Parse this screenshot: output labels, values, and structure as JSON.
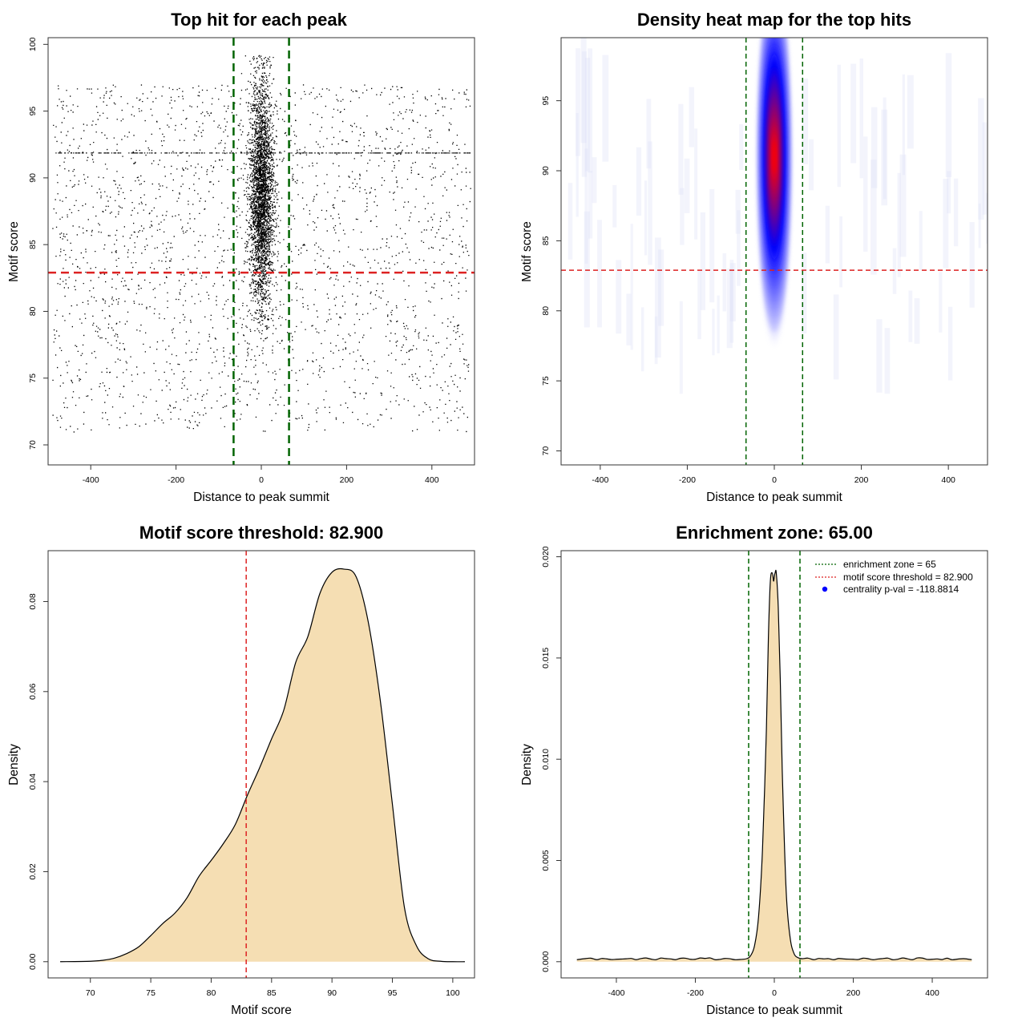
{
  "figure": {
    "background": "#ffffff"
  },
  "chart_data": [
    {
      "id": "scatter",
      "type": "scatter",
      "title": "Top hit for each peak",
      "xlabel": "Distance to peak summit",
      "ylabel": "Motif score",
      "xlim": [
        -500,
        500
      ],
      "ylim": [
        68.5,
        100.5
      ],
      "xticks": [
        -400,
        -200,
        0,
        200,
        400
      ],
      "xtick_labels": [
        "-400",
        "-200",
        "0",
        "200",
        "400"
      ],
      "yticks": [
        70,
        75,
        80,
        85,
        90,
        95,
        100
      ],
      "ytick_labels": [
        "70",
        "75",
        "80",
        "85",
        "90",
        "95",
        "100"
      ],
      "vlines": [
        -65,
        65
      ],
      "hline": 82.9,
      "colors": {
        "points": "#000000",
        "zone": "#006400",
        "threshold": "#dd2222"
      },
      "distribution": {
        "central_points": 7000,
        "central_x_sd": 14,
        "central_score_mean": 88.8,
        "central_score_sd": 4.3,
        "background_points": 2600,
        "background_x_range": [
          -490,
          490
        ],
        "background_score_range": [
          71,
          97
        ],
        "band_score": 91.9
      }
    },
    {
      "id": "heatmap",
      "type": "heatmap",
      "title": "Density heat map for the top hits",
      "xlabel": "Distance to peak summit",
      "ylabel": "Motif score",
      "xlim": [
        -490,
        490
      ],
      "ylim": [
        69,
        99.5
      ],
      "xticks": [
        -400,
        -200,
        0,
        200,
        400
      ],
      "xtick_labels": [
        "-400",
        "-200",
        "0",
        "200",
        "400"
      ],
      "yticks": [
        70,
        75,
        80,
        85,
        90,
        95
      ],
      "ytick_labels": [
        "70",
        "75",
        "80",
        "85",
        "90",
        "95"
      ],
      "vlines": [
        -65,
        65
      ],
      "hline": 82.9,
      "colors": {
        "low": "#ffffff",
        "mid": "#0000ff",
        "high": "#ff0000",
        "zone": "#006400",
        "threshold": "#dd2222"
      },
      "hotspot": {
        "x": 0,
        "score": 91.0,
        "x_sd": 14,
        "score_sd": 4.6
      }
    },
    {
      "id": "score_density",
      "type": "area",
      "title": "Motif score threshold: 82.900",
      "xlabel": "Motif score",
      "ylabel": "Density",
      "xlim": [
        66.5,
        101.8
      ],
      "ylim": [
        -0.0036,
        0.0913
      ],
      "xticks": [
        70,
        75,
        80,
        85,
        90,
        95,
        100
      ],
      "xtick_labels": [
        "70",
        "75",
        "80",
        "85",
        "90",
        "95",
        "100"
      ],
      "yticks": [
        0.0,
        0.02,
        0.04,
        0.06,
        0.08
      ],
      "ytick_labels": [
        "0.00",
        "0.02",
        "0.04",
        "0.06",
        "0.08"
      ],
      "vline": 82.9,
      "colors": {
        "fill": "#f5deb3",
        "line": "#000000",
        "threshold": "#dd2222"
      },
      "x": [
        67.5,
        70,
        71,
        72,
        73,
        74,
        75,
        76,
        77,
        78,
        79,
        80,
        81,
        82,
        83,
        84,
        85,
        86,
        87,
        88,
        89,
        90,
        91,
        92,
        93,
        94,
        95,
        96,
        97,
        98,
        99,
        100,
        101
      ],
      "y": [
        0.0,
        0.0001,
        0.0003,
        0.0008,
        0.0018,
        0.0033,
        0.0058,
        0.0085,
        0.0108,
        0.0142,
        0.019,
        0.0225,
        0.0262,
        0.0305,
        0.037,
        0.043,
        0.0495,
        0.0558,
        0.0665,
        0.0722,
        0.0818,
        0.0865,
        0.0872,
        0.0855,
        0.0755,
        0.058,
        0.035,
        0.012,
        0.0035,
        0.0006,
        0.0001,
        0.0,
        0.0
      ]
    },
    {
      "id": "distance_density",
      "type": "area",
      "title": "Enrichment zone: 65.00",
      "xlabel": "Distance to peak summit",
      "ylabel": "Density",
      "xlim": [
        -540,
        540
      ],
      "ylim": [
        -0.0008,
        0.0203
      ],
      "xticks": [
        -400,
        -200,
        0,
        200,
        400
      ],
      "xtick_labels": [
        "-400",
        "-200",
        "0",
        "200",
        "400"
      ],
      "yticks": [
        0.0,
        0.005,
        0.01,
        0.015,
        0.02
      ],
      "ytick_labels": [
        "0.000",
        "0.005",
        "0.010",
        "0.015",
        "0.020"
      ],
      "vlines": [
        -65,
        65
      ],
      "colors": {
        "fill": "#f5deb3",
        "line": "#000000",
        "zone": "#006400",
        "threshold": "#dd2222",
        "pval": "#0000ff"
      },
      "x": [
        -500,
        -480,
        -450,
        -400,
        -350,
        -300,
        -250,
        -200,
        -150,
        -100,
        -70,
        -60,
        -50,
        -40,
        -30,
        -20,
        -15,
        -10,
        -5,
        -2,
        0,
        2,
        5,
        10,
        15,
        20,
        30,
        40,
        50,
        60,
        70,
        100,
        150,
        200,
        250,
        300,
        350,
        400,
        450,
        480,
        500
      ],
      "y": [
        0.0001,
        0.00015,
        0.0001,
        0.00012,
        0.0001,
        0.0001,
        0.0001,
        0.00012,
        0.0001,
        0.0001,
        0.00015,
        0.0003,
        0.0008,
        0.0022,
        0.0055,
        0.0115,
        0.016,
        0.0188,
        0.0192,
        0.0188,
        0.019,
        0.0192,
        0.0192,
        0.0175,
        0.014,
        0.0095,
        0.0035,
        0.0012,
        0.0004,
        0.0002,
        0.00015,
        0.0001,
        0.0001,
        0.00012,
        0.0001,
        0.0001,
        0.0001,
        0.00012,
        0.0001,
        0.00015,
        0.0001
      ],
      "legend": [
        {
          "label": "enrichment zone = 65",
          "kind": "line",
          "color": "#006400"
        },
        {
          "label": "motif score threshold = 82.900",
          "kind": "line",
          "color": "#dd2222"
        },
        {
          "label": "centrality p-val = -118.8814",
          "kind": "point",
          "color": "#0000ff"
        }
      ]
    }
  ]
}
